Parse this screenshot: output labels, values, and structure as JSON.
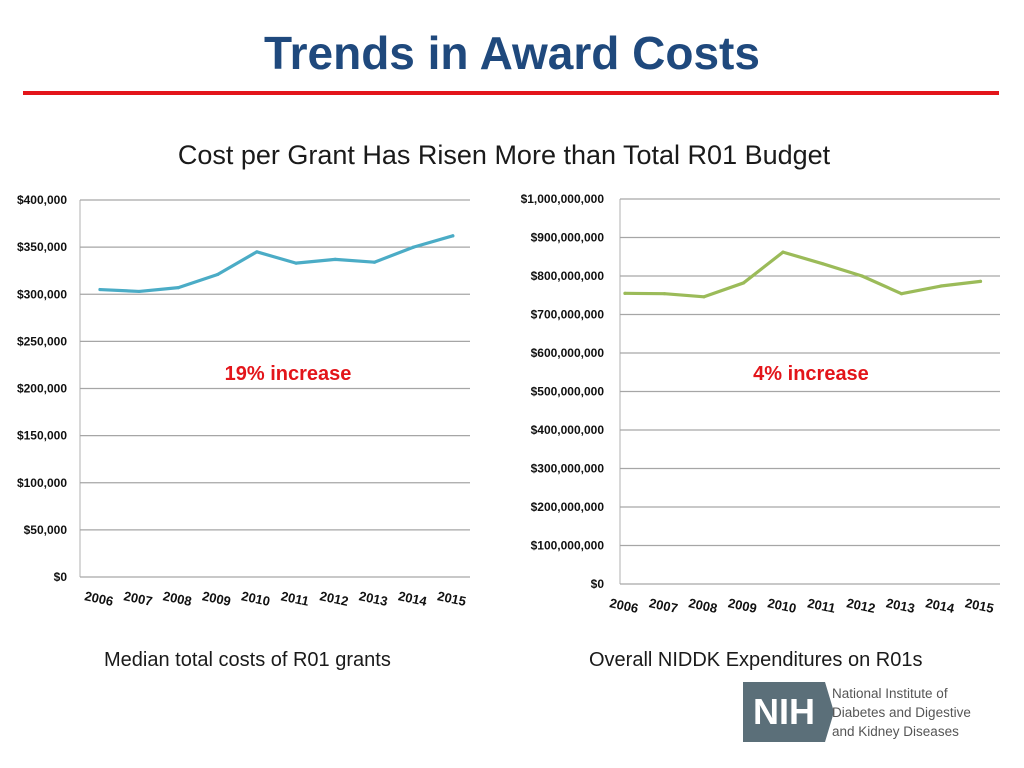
{
  "slide": {
    "title": "Trends in Award Costs",
    "subtitle": "Cost per Grant Has Risen More than Total R01 Budget",
    "caption_left": "Median total costs of R01 grants",
    "caption_right": "Overall NIDDK Expenditures on R01s",
    "accent_color": "#e3151a",
    "title_color": "#1f497d"
  },
  "logo": {
    "mark": "NIH",
    "lines": [
      "National Institute of",
      "Diabetes and Digestive",
      "and Kidney Diseases"
    ]
  },
  "chart_data": [
    {
      "type": "line",
      "title": "Median total costs of R01 grants",
      "x": [
        "2006",
        "2007",
        "2008",
        "2009",
        "2010",
        "2011",
        "2012",
        "2013",
        "2014",
        "2015"
      ],
      "series": [
        {
          "name": "Median total costs",
          "color": "#4bacc6",
          "values": [
            305000,
            303000,
            307000,
            321000,
            345000,
            333000,
            337000,
            334000,
            350000,
            362000
          ]
        }
      ],
      "ylim": [
        0,
        400000
      ],
      "yticks": [
        0,
        50000,
        100000,
        150000,
        200000,
        250000,
        300000,
        350000,
        400000
      ],
      "ytick_labels": [
        "$0",
        "$50,000",
        "$100,000",
        "$150,000",
        "$200,000",
        "$250,000",
        "$300,000",
        "$350,000",
        "$400,000"
      ],
      "annotation": "19% increase",
      "grid": true
    },
    {
      "type": "line",
      "title": "Overall NIDDK Expenditures on R01s",
      "x": [
        "2006",
        "2007",
        "2008",
        "2009",
        "2010",
        "2011",
        "2012",
        "2013",
        "2014",
        "2015"
      ],
      "series": [
        {
          "name": "NIDDK R01 expenditures",
          "color": "#9bbb59",
          "values": [
            755000000,
            754000000,
            746000000,
            782000000,
            862000000,
            832000000,
            800000000,
            754000000,
            774000000,
            786000000
          ]
        }
      ],
      "ylim": [
        0,
        1000000000
      ],
      "yticks": [
        0,
        100000000,
        200000000,
        300000000,
        400000000,
        500000000,
        600000000,
        700000000,
        800000000,
        900000000,
        1000000000
      ],
      "ytick_labels": [
        "$0",
        "$100,000,000",
        "$200,000,000",
        "$300,000,000",
        "$400,000,000",
        "$500,000,000",
        "$600,000,000",
        "$700,000,000",
        "$800,000,000",
        "$900,000,000",
        "$1,000,000,000"
      ],
      "annotation": "4% increase",
      "grid": true
    }
  ]
}
